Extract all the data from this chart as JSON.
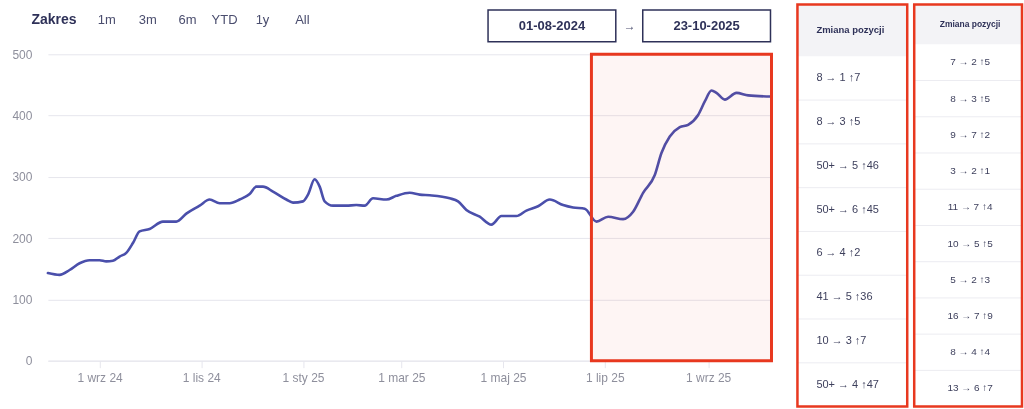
{
  "chart_data": [
    {
      "type": "line",
      "annotations": [
        "Zakres",
        "1m",
        "3m",
        "6m",
        "YTD",
        "1y",
        "All",
        "01-08-2024",
        "→",
        "23-10-2025"
      ],
      "x": [
        "2024-08-01",
        "2024-08-08",
        "2024-08-14",
        "2024-08-20",
        "2024-08-26",
        "2024-09-01",
        "2024-09-05",
        "2024-09-09",
        "2024-09-13",
        "2024-09-17",
        "2024-09-21",
        "2024-09-25",
        "2024-10-01",
        "2024-10-09",
        "2024-10-17",
        "2024-10-23",
        "2024-10-31",
        "2024-11-06",
        "2024-11-12",
        "2024-11-18",
        "2024-11-24",
        "2024-11-30",
        "2024-12-04",
        "2024-12-08",
        "2024-12-14",
        "2024-12-22",
        "2024-12-26",
        "2025-01-01",
        "2025-01-04",
        "2025-01-08",
        "2025-01-11",
        "2025-01-14",
        "2025-01-19",
        "2025-01-27",
        "2025-02-02",
        "2025-02-07",
        "2025-02-12",
        "2025-02-20",
        "2025-02-26",
        "2025-03-06",
        "2025-03-12",
        "2025-03-18",
        "2025-03-30",
        "2025-04-04",
        "2025-04-09",
        "2025-04-17",
        "2025-04-24",
        "2025-04-30",
        "2025-05-09",
        "2025-05-15",
        "2025-05-22",
        "2025-05-29",
        "2025-06-06",
        "2025-06-12",
        "2025-06-19",
        "2025-06-26",
        "2025-07-03",
        "2025-07-12",
        "2025-07-18",
        "2025-07-24",
        "2025-07-31",
        "2025-08-04",
        "2025-08-09",
        "2025-08-15",
        "2025-08-20",
        "2025-08-26",
        "2025-08-30",
        "2025-09-03",
        "2025-09-06",
        "2025-09-11",
        "2025-09-18",
        "2025-09-25",
        "2025-10-09"
      ],
      "series": [
        {
          "color": "#4a4fab",
          "values": [
            143,
            140,
            148,
            159,
            164,
            164,
            162,
            163,
            170,
            176,
            192,
            211,
            215,
            227,
            227,
            240,
            253,
            263,
            257,
            257,
            263,
            272,
            284,
            284,
            276,
            263,
            258,
            260,
            271,
            296,
            284,
            260,
            253,
            253,
            254,
            253,
            265,
            263,
            269,
            274,
            271,
            270,
            265,
            260,
            246,
            235,
            222,
            236,
            236,
            245,
            252,
            263,
            254,
            250,
            248,
            227,
            235,
            231,
            243,
            274,
            303,
            339,
            366,
            381,
            385,
            401,
            423,
            441,
            437,
            426,
            437,
            433,
            431
          ]
        }
      ],
      "xlim": [
        "2024-08-01",
        "2025-10-09"
      ],
      "xticks": [
        {
          "value": "2024-09-01",
          "label": "1 wrz 24"
        },
        {
          "value": "2024-11-01",
          "label": "1 lis 24"
        },
        {
          "value": "2025-01-01",
          "label": "1 sty 25"
        },
        {
          "value": "2025-03-01",
          "label": "1 mar 25"
        },
        {
          "value": "2025-05-01",
          "label": "1 maj 25"
        },
        {
          "value": "2025-07-01",
          "label": "1 lip 25"
        },
        {
          "value": "2025-09-01",
          "label": "1 wrz 25"
        }
      ],
      "ylim": [
        0,
        500
      ],
      "yticks": [
        0,
        100,
        200,
        300,
        400,
        500
      ],
      "grid": "y",
      "bands": [
        {
          "axis": "x",
          "from": "2025-06-23",
          "to": "2025-10-09",
          "color": "#e8381f"
        }
      ]
    },
    {
      "type": "other",
      "title": "Zmiana pozycji",
      "annotations": [
        "8 → 1 ↑7",
        "8 → 3 ↑5",
        "50+ → 5 ↑46",
        "50+ → 6 ↑45",
        "6 → 4 ↑2",
        "41 → 5 ↑36",
        "10 → 3 ↑7",
        "50+ → 4 ↑47"
      ]
    },
    {
      "type": "other",
      "title": "Zmiana pozycji",
      "annotations": [
        "7 → 2 ↑5",
        "8 → 3 ↑5",
        "9 → 7 ↑2",
        "3 → 2 ↑1",
        "11 → 7 ↑4",
        "10 → 5 ↑5",
        "5 → 2 ↑3",
        "16 → 7 ↑9",
        "8 → 4 ↑4",
        "13 → 6 ↑7"
      ]
    }
  ]
}
